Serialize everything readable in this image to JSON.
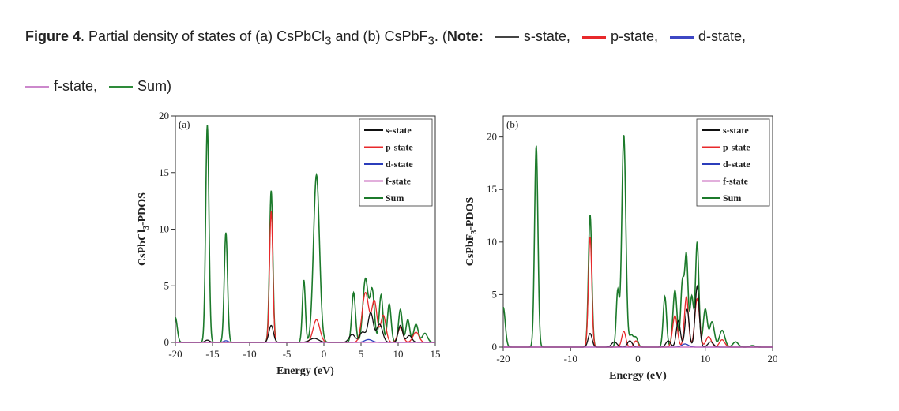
{
  "caption": {
    "fig_label": "Figure 4",
    "text": ". Partial density of states of (a) CsPbCl",
    "sub1": "3",
    "and": " and (b) CsPbF",
    "sub2": "3",
    "open": ". (",
    "note": "Note:",
    "items": [
      "s-state,",
      "p-state,",
      "d-state,",
      "f-state,",
      "Sum)"
    ]
  },
  "colors": {
    "s": "#111111",
    "p": "#e8292b",
    "d": "#2b3dbb",
    "f": "#c65fb8",
    "sum": "#1c7a2b",
    "caption_s": "#444444",
    "caption_p": "#e8292b",
    "caption_d": "#3d47c4",
    "caption_f": "#cc88cc",
    "caption_sum": "#2e8b3a"
  },
  "chart_data": [
    {
      "type": "line",
      "panel_label": "(a)",
      "xlabel": "Energy (eV)",
      "ylabel": "CsPbCl3-PDOS",
      "ylabel_main": "CsPbCl",
      "ylabel_sub": "3",
      "ylabel_tail": "-PDOS",
      "xlim": [
        -20,
        15
      ],
      "ylim": [
        0,
        20
      ],
      "xticks": [
        -20,
        -15,
        -10,
        -5,
        0,
        5,
        10,
        15
      ],
      "yticks": [
        0,
        5,
        10,
        15,
        20
      ],
      "legend": [
        "s-state",
        "p-state",
        "d-state",
        "f-state",
        "Sum"
      ],
      "series": [
        {
          "name": "Sum",
          "key": "sum",
          "peaks": [
            [
              -20,
              2.2,
              0.25
            ],
            [
              -15.7,
              19.2,
              0.22
            ],
            [
              -13.2,
              9.7,
              0.22
            ],
            [
              -7.1,
              13.4,
              0.22
            ],
            [
              -2.7,
              5.5,
              0.2
            ],
            [
              -1.0,
              14.8,
              0.4
            ],
            [
              4.0,
              4.4,
              0.25
            ],
            [
              5.6,
              5.6,
              0.35
            ],
            [
              6.5,
              4.6,
              0.3
            ],
            [
              7.7,
              4.2,
              0.25
            ],
            [
              8.8,
              3.4,
              0.25
            ],
            [
              10.3,
              2.9,
              0.25
            ],
            [
              11.3,
              2.0,
              0.25
            ],
            [
              12.4,
              1.6,
              0.3
            ],
            [
              13.6,
              0.8,
              0.35
            ]
          ]
        },
        {
          "name": "p-state",
          "key": "p",
          "peaks": [
            [
              -7.1,
              11.6,
              0.22
            ],
            [
              -1.0,
              2.0,
              0.45
            ],
            [
              5.6,
              4.4,
              0.45
            ],
            [
              6.8,
              3.6,
              0.35
            ],
            [
              8.0,
              2.4,
              0.35
            ],
            [
              10.3,
              1.3,
              0.35
            ],
            [
              12.4,
              0.9,
              0.4
            ]
          ]
        },
        {
          "name": "s-state",
          "key": "s",
          "peaks": [
            [
              -15.7,
              0.2,
              0.3
            ],
            [
              -7.1,
              1.5,
              0.3
            ],
            [
              -1.3,
              0.35,
              0.6
            ],
            [
              3.8,
              0.7,
              0.4
            ],
            [
              5.2,
              0.9,
              0.4
            ],
            [
              6.3,
              2.6,
              0.35
            ],
            [
              7.5,
              1.6,
              0.4
            ],
            [
              10.3,
              1.5,
              0.3
            ],
            [
              11.5,
              0.6,
              0.35
            ]
          ]
        },
        {
          "name": "d-state",
          "key": "d",
          "peaks": [
            [
              -13.2,
              0.15,
              0.3
            ],
            [
              6.0,
              0.25,
              0.5
            ]
          ]
        },
        {
          "name": "f-state",
          "key": "f",
          "peaks": []
        }
      ]
    },
    {
      "type": "line",
      "panel_label": "(b)",
      "xlabel": "Energy (eV)",
      "ylabel": "CsPbF3-PDOS",
      "ylabel_main": "CsPbF",
      "ylabel_sub": "3",
      "ylabel_tail": "-PDOS",
      "xlim": [
        -20,
        20
      ],
      "ylim": [
        0,
        22
      ],
      "xticks": [
        -20,
        -10,
        0,
        10,
        20
      ],
      "yticks": [
        0,
        5,
        10,
        15,
        20
      ],
      "legend": [
        "s-state",
        "p-state",
        "d-state",
        "f-state",
        "Sum"
      ],
      "series": [
        {
          "name": "Sum",
          "key": "sum",
          "peaks": [
            [
              -20,
              3.8,
              0.3
            ],
            [
              -15.1,
              19.2,
              0.25
            ],
            [
              -7.1,
              12.6,
              0.25
            ],
            [
              -3.0,
              5.3,
              0.22
            ],
            [
              -2.1,
              20.2,
              0.3
            ],
            [
              -1.0,
              1.1,
              0.3
            ],
            [
              -0.3,
              0.9,
              0.3
            ],
            [
              4.0,
              4.8,
              0.25
            ],
            [
              5.5,
              5.4,
              0.3
            ],
            [
              6.6,
              6.0,
              0.25
            ],
            [
              7.2,
              8.6,
              0.25
            ],
            [
              8.0,
              4.8,
              0.25
            ],
            [
              8.8,
              10.0,
              0.25
            ],
            [
              10.0,
              3.6,
              0.3
            ],
            [
              11.0,
              2.4,
              0.35
            ],
            [
              12.5,
              1.6,
              0.4
            ],
            [
              14.5,
              0.5,
              0.4
            ],
            [
              17.0,
              0.15,
              0.4
            ]
          ]
        },
        {
          "name": "p-state",
          "key": "p",
          "peaks": [
            [
              -7.1,
              10.5,
              0.25
            ],
            [
              -2.1,
              1.5,
              0.3
            ],
            [
              -0.3,
              0.6,
              0.3
            ],
            [
              5.5,
              3.0,
              0.35
            ],
            [
              7.2,
              4.8,
              0.3
            ],
            [
              8.8,
              4.6,
              0.35
            ],
            [
              10.5,
              1.0,
              0.4
            ],
            [
              12.5,
              0.7,
              0.4
            ]
          ]
        },
        {
          "name": "s-state",
          "key": "s",
          "peaks": [
            [
              -7.1,
              1.3,
              0.3
            ],
            [
              -3.5,
              0.5,
              0.4
            ],
            [
              -1.2,
              0.6,
              0.35
            ],
            [
              4.5,
              0.6,
              0.35
            ],
            [
              6.0,
              2.5,
              0.3
            ],
            [
              7.3,
              3.6,
              0.3
            ],
            [
              8.8,
              5.8,
              0.3
            ],
            [
              10.8,
              0.5,
              0.4
            ]
          ]
        },
        {
          "name": "d-state",
          "key": "d",
          "peaks": [
            [
              7.0,
              0.3,
              0.5
            ]
          ]
        },
        {
          "name": "f-state",
          "key": "f",
          "peaks": []
        }
      ]
    }
  ]
}
